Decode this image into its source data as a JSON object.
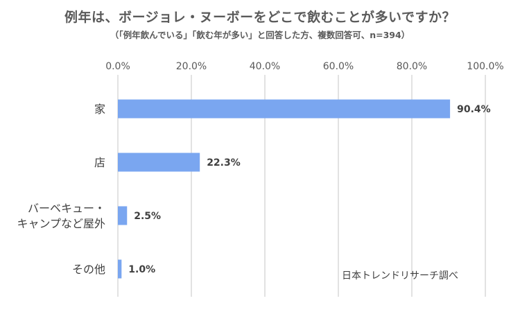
{
  "chart_data": {
    "type": "bar",
    "orientation": "horizontal",
    "title": "例年は、ボージョレ・ヌーボーをどこで飲むことが多いですか？",
    "subtitle": "（「例年飲んでいる」「飲む年が多い」と回答した方、複数回答可、n=394）",
    "categories": [
      "家",
      "店",
      "バーベキュー・キャンプなど屋外",
      "その他"
    ],
    "category_lines": [
      [
        "家"
      ],
      [
        "店"
      ],
      [
        "バーベキュー・",
        "キャンプなど屋外"
      ],
      [
        "その他"
      ]
    ],
    "values": [
      90.4,
      22.3,
      2.5,
      1.0
    ],
    "data_labels": [
      "90.4%",
      "22.3%",
      "2.5%",
      "1.0%"
    ],
    "xlim": [
      0,
      100
    ],
    "xticks": [
      0,
      20,
      40,
      60,
      80,
      100
    ],
    "xtick_labels": [
      "0.0%",
      "20.0%",
      "40.0%",
      "60.0%",
      "80.0%",
      "100.0%"
    ],
    "xaxis_position": "top",
    "grid": true,
    "bar_color": "#7aa6f0",
    "grid_color": "#d9d9d9",
    "source": "日本トレンドリサーチ調べ"
  }
}
